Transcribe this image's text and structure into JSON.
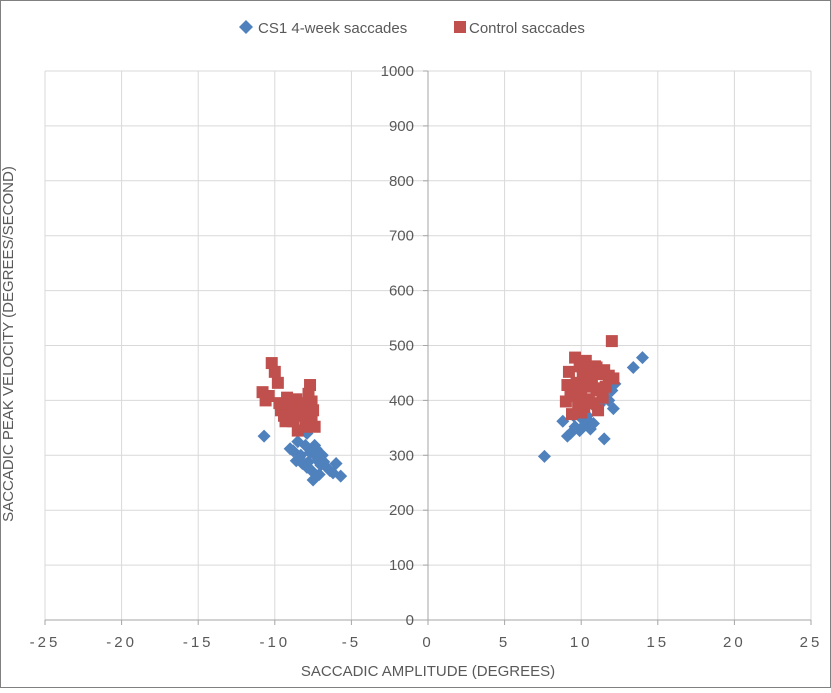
{
  "chart_data": {
    "type": "scatter",
    "title": "",
    "xlabel": "SACCADIC AMPLITUDE (DEGREES)",
    "ylabel": "SACCADIC PEAK VELOCITY (DEGREES/SECOND)",
    "xlim": [
      -25,
      25
    ],
    "ylim": [
      0,
      1000
    ],
    "x_ticks": [
      -25,
      -20,
      -15,
      -10,
      -5,
      0,
      5,
      10,
      15,
      20,
      25
    ],
    "x_tick_labels": [
      "-25",
      "-20",
      "-15",
      "-10",
      "-5",
      "0",
      "5",
      "10",
      "15",
      "20",
      "25"
    ],
    "y_ticks": [
      0,
      100,
      200,
      300,
      400,
      500,
      600,
      700,
      800,
      900,
      1000
    ],
    "y_tick_labels": [
      "0",
      "100",
      "200",
      "300",
      "400",
      "500",
      "600",
      "700",
      "800",
      "900",
      "1000"
    ],
    "grid": true,
    "legend_position": "top",
    "series": [
      {
        "name": "CS1 4-week saccades",
        "marker": "diamond",
        "color": "#4F81BD",
        "points": [
          [
            -10.7,
            335
          ],
          [
            -9.0,
            312
          ],
          [
            -8.8,
            308
          ],
          [
            -8.5,
            325
          ],
          [
            -8.3,
            300
          ],
          [
            -8.2,
            285
          ],
          [
            -8.0,
            318
          ],
          [
            -7.9,
            340
          ],
          [
            -7.8,
            288
          ],
          [
            -7.7,
            305
          ],
          [
            -7.6,
            272
          ],
          [
            -7.5,
            255
          ],
          [
            -7.4,
            318
          ],
          [
            -7.3,
            298
          ],
          [
            -7.2,
            290
          ],
          [
            -7.1,
            265
          ],
          [
            -7.0,
            282
          ],
          [
            -6.9,
            300
          ],
          [
            -6.8,
            288
          ],
          [
            -6.6,
            278
          ],
          [
            -6.4,
            272
          ],
          [
            -6.2,
            268
          ],
          [
            -6.0,
            285
          ],
          [
            -5.7,
            262
          ],
          [
            -8.4,
            295
          ],
          [
            -7.9,
            278
          ],
          [
            -8.6,
            290
          ],
          [
            -7.3,
            312
          ],
          [
            7.6,
            298
          ],
          [
            8.8,
            362
          ],
          [
            9.1,
            335
          ],
          [
            9.3,
            340
          ],
          [
            9.5,
            372
          ],
          [
            9.6,
            352
          ],
          [
            9.8,
            378
          ],
          [
            10.0,
            368
          ],
          [
            10.2,
            355
          ],
          [
            10.4,
            372
          ],
          [
            10.5,
            362
          ],
          [
            10.8,
            358
          ],
          [
            11.0,
            385
          ],
          [
            11.2,
            392
          ],
          [
            11.5,
            330
          ],
          [
            11.8,
            400
          ],
          [
            12.1,
            385
          ],
          [
            12.2,
            430
          ],
          [
            12.0,
            418
          ],
          [
            13.4,
            460
          ],
          [
            14.0,
            478
          ],
          [
            10.6,
            348
          ],
          [
            9.9,
            345
          ],
          [
            11.6,
            405
          ]
        ]
      },
      {
        "name": "Control saccades",
        "marker": "square",
        "color": "#C0504D",
        "points": [
          [
            -10.8,
            415
          ],
          [
            -10.6,
            400
          ],
          [
            -10.2,
            468
          ],
          [
            -10.0,
            452
          ],
          [
            -9.8,
            432
          ],
          [
            -9.6,
            382
          ],
          [
            -9.4,
            372
          ],
          [
            -9.2,
            405
          ],
          [
            -9.0,
            392
          ],
          [
            -8.8,
            362
          ],
          [
            -8.6,
            402
          ],
          [
            -8.5,
            345
          ],
          [
            -8.4,
            382
          ],
          [
            -8.2,
            372
          ],
          [
            -8.1,
            395
          ],
          [
            -8.0,
            352
          ],
          [
            -7.9,
            385
          ],
          [
            -7.8,
            412
          ],
          [
            -7.7,
            428
          ],
          [
            -7.6,
            365
          ],
          [
            -7.5,
            382
          ],
          [
            -7.4,
            352
          ],
          [
            -9.3,
            362
          ],
          [
            -8.9,
            378
          ],
          [
            -10.4,
            408
          ],
          [
            -9.7,
            395
          ],
          [
            -8.3,
            392
          ],
          [
            -7.6,
            398
          ],
          [
            9.0,
            398
          ],
          [
            9.1,
            428
          ],
          [
            9.2,
            452
          ],
          [
            9.4,
            375
          ],
          [
            9.5,
            408
          ],
          [
            9.6,
            478
          ],
          [
            9.7,
            432
          ],
          [
            9.8,
            392
          ],
          [
            9.9,
            462
          ],
          [
            10.0,
            412
          ],
          [
            10.1,
            445
          ],
          [
            10.2,
            388
          ],
          [
            10.3,
            472
          ],
          [
            10.4,
            425
          ],
          [
            10.5,
            402
          ],
          [
            10.6,
            452
          ],
          [
            10.7,
            438
          ],
          [
            10.8,
            395
          ],
          [
            10.9,
            462
          ],
          [
            11.0,
            418
          ],
          [
            11.1,
            382
          ],
          [
            11.2,
            448
          ],
          [
            11.3,
            422
          ],
          [
            11.4,
            405
          ],
          [
            11.5,
            455
          ],
          [
            11.6,
            425
          ],
          [
            11.8,
            445
          ],
          [
            12.0,
            508
          ],
          [
            12.1,
            440
          ],
          [
            9.3,
            415
          ],
          [
            10.0,
            378
          ],
          [
            11.0,
            460
          ]
        ]
      }
    ]
  }
}
